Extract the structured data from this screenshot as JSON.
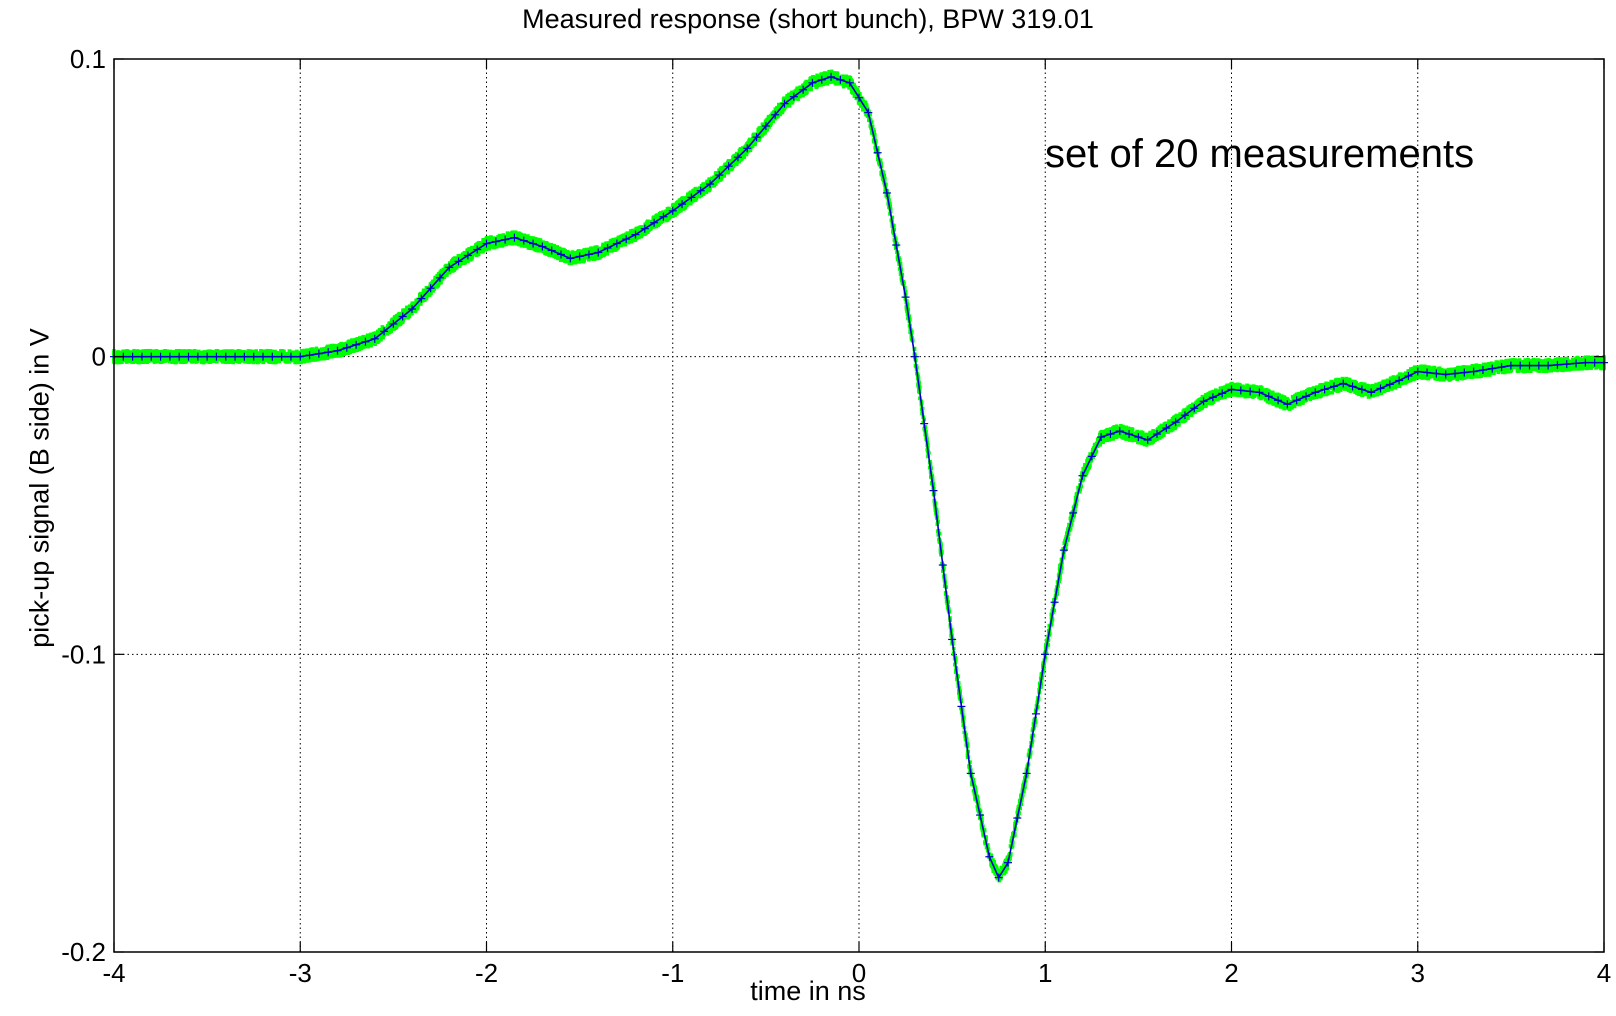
{
  "chart_data": {
    "type": "scatter",
    "title": "Measured response (short bunch), BPW 319.01",
    "xlabel": "time in ns",
    "ylabel": "pick-up signal (B side) in V",
    "annotation": "set of 20 measurements",
    "xlim": [
      -4,
      4
    ],
    "ylim": [
      -0.2,
      0.1
    ],
    "xticks": [
      -4,
      -3,
      -2,
      -1,
      0,
      1,
      2,
      3,
      4
    ],
    "yticks": [
      -0.2,
      -0.1,
      0,
      0.1
    ],
    "xtick_labels": [
      "-4",
      "-3",
      "-2",
      "-1",
      "0",
      "1",
      "2",
      "3",
      "4"
    ],
    "ytick_labels": [
      "-0.2",
      "-0.1",
      "0",
      "0.1"
    ],
    "grid": true,
    "colors": {
      "measurements": "#00ff00",
      "mean": "#0000cc",
      "axis": "#000000"
    },
    "series": [
      {
        "style": "line-with-plus-markers",
        "x": [
          -4.0,
          -3.5,
          -3.0,
          -2.8,
          -2.6,
          -2.4,
          -2.2,
          -2.0,
          -1.85,
          -1.7,
          -1.55,
          -1.4,
          -1.2,
          -1.0,
          -0.8,
          -0.6,
          -0.4,
          -0.25,
          -0.15,
          -0.05,
          0.05,
          0.15,
          0.25,
          0.3,
          0.4,
          0.5,
          0.6,
          0.7,
          0.75,
          0.8,
          0.9,
          1.0,
          1.1,
          1.2,
          1.3,
          1.4,
          1.55,
          1.7,
          1.85,
          2.0,
          2.15,
          2.3,
          2.45,
          2.6,
          2.75,
          2.9,
          3.0,
          3.15,
          3.3,
          3.5,
          3.7,
          3.9,
          4.0
        ],
        "y": [
          0.0,
          0.0,
          0.0,
          0.002,
          0.006,
          0.016,
          0.03,
          0.038,
          0.04,
          0.037,
          0.033,
          0.035,
          0.041,
          0.049,
          0.058,
          0.07,
          0.085,
          0.092,
          0.094,
          0.092,
          0.082,
          0.055,
          0.02,
          0.0,
          -0.045,
          -0.095,
          -0.14,
          -0.168,
          -0.175,
          -0.17,
          -0.14,
          -0.1,
          -0.065,
          -0.04,
          -0.027,
          -0.025,
          -0.028,
          -0.022,
          -0.015,
          -0.011,
          -0.012,
          -0.016,
          -0.012,
          -0.009,
          -0.012,
          -0.008,
          -0.005,
          -0.006,
          -0.005,
          -0.003,
          -0.003,
          -0.002,
          -0.002
        ]
      }
    ]
  }
}
